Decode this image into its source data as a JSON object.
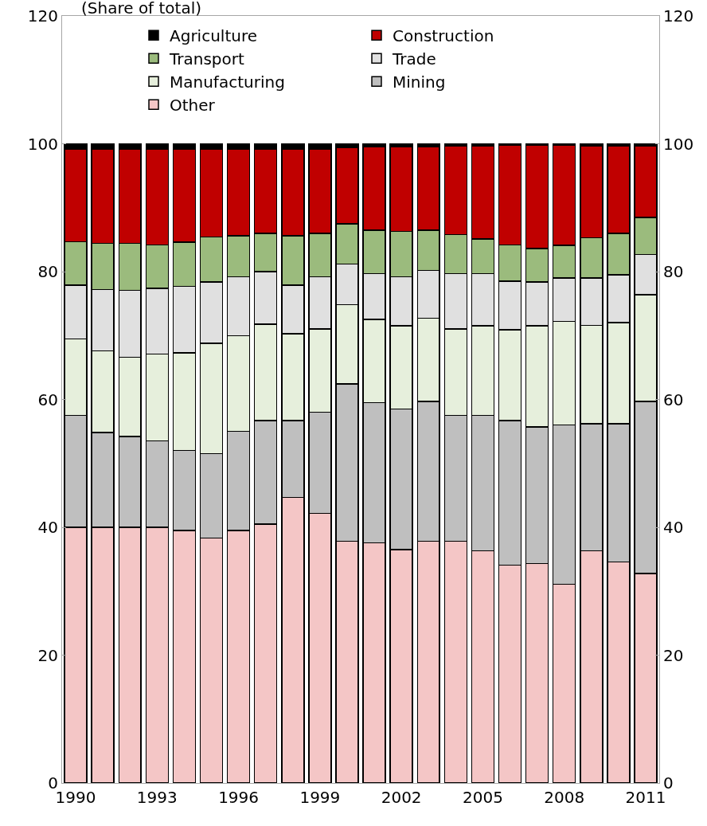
{
  "chart_data": {
    "type": "bar",
    "stacked": true,
    "title": "(Share of total)",
    "categories": [
      "1990",
      null,
      null,
      "1993",
      null,
      null,
      "1996",
      null,
      null,
      "1999",
      null,
      null,
      "2002",
      null,
      null,
      "2005",
      null,
      null,
      "2008",
      null,
      null,
      "2011"
    ],
    "series": [
      {
        "name": "Other",
        "color": "#f4c6c6",
        "values": [
          40.0,
          40.0,
          40.0,
          40.0,
          39.5,
          38.3,
          39.5,
          40.5,
          44.7,
          42.2,
          37.8,
          37.6,
          36.5,
          37.8,
          37.8,
          36.3,
          34.1,
          34.3,
          31.1,
          36.3,
          34.6,
          32.8
        ]
      },
      {
        "name": "Mining",
        "color": "#bfbfbf",
        "values": [
          17.5,
          14.8,
          14.2,
          13.5,
          12.5,
          13.2,
          15.5,
          16.2,
          12.0,
          15.8,
          24.6,
          21.9,
          22.0,
          21.9,
          19.7,
          21.2,
          22.6,
          21.4,
          24.9,
          19.9,
          21.6,
          26.9
        ]
      },
      {
        "name": "Manufacturing",
        "color": "#e6efdc",
        "values": [
          12.0,
          12.8,
          12.4,
          13.6,
          15.3,
          17.3,
          15.0,
          15.1,
          13.6,
          13.0,
          12.4,
          13.0,
          13.0,
          13.0,
          13.5,
          14.0,
          14.2,
          15.8,
          16.2,
          15.4,
          15.8,
          16.7
        ]
      },
      {
        "name": "Trade",
        "color": "#e0e0e0",
        "values": [
          8.4,
          9.6,
          10.5,
          10.3,
          10.4,
          9.6,
          9.2,
          8.2,
          7.6,
          8.2,
          6.4,
          7.2,
          7.7,
          7.5,
          8.7,
          8.2,
          7.6,
          6.9,
          6.8,
          7.4,
          7.5,
          6.3
        ]
      },
      {
        "name": "Transport",
        "color": "#9bbb7d",
        "values": [
          6.8,
          7.2,
          7.3,
          6.8,
          6.9,
          7.0,
          6.4,
          6.0,
          7.7,
          6.8,
          6.3,
          6.8,
          7.1,
          6.3,
          6.1,
          5.4,
          5.7,
          5.2,
          5.1,
          6.3,
          6.5,
          5.8
        ]
      },
      {
        "name": "Construction",
        "color": "#c00000",
        "values": [
          14.5,
          14.8,
          14.8,
          15.0,
          14.6,
          13.8,
          13.6,
          13.2,
          13.6,
          13.2,
          11.9,
          13.0,
          13.2,
          13.0,
          13.9,
          14.6,
          15.6,
          16.2,
          15.7,
          14.4,
          13.7,
          11.2
        ]
      },
      {
        "name": "Agriculture",
        "color": "#000000",
        "values": [
          0.8,
          0.8,
          0.8,
          0.8,
          0.8,
          0.8,
          0.8,
          0.8,
          0.8,
          0.8,
          0.6,
          0.5,
          0.5,
          0.5,
          0.3,
          0.3,
          0.2,
          0.2,
          0.2,
          0.3,
          0.3,
          0.3
        ]
      }
    ],
    "ylim": [
      0,
      120
    ],
    "yticks": [
      0,
      20,
      40,
      60,
      80,
      100,
      120
    ],
    "y2lim": [
      0,
      120
    ],
    "y2ticks": [
      0,
      20,
      40,
      60,
      80,
      100,
      120
    ],
    "grid": false,
    "legend": "top"
  }
}
